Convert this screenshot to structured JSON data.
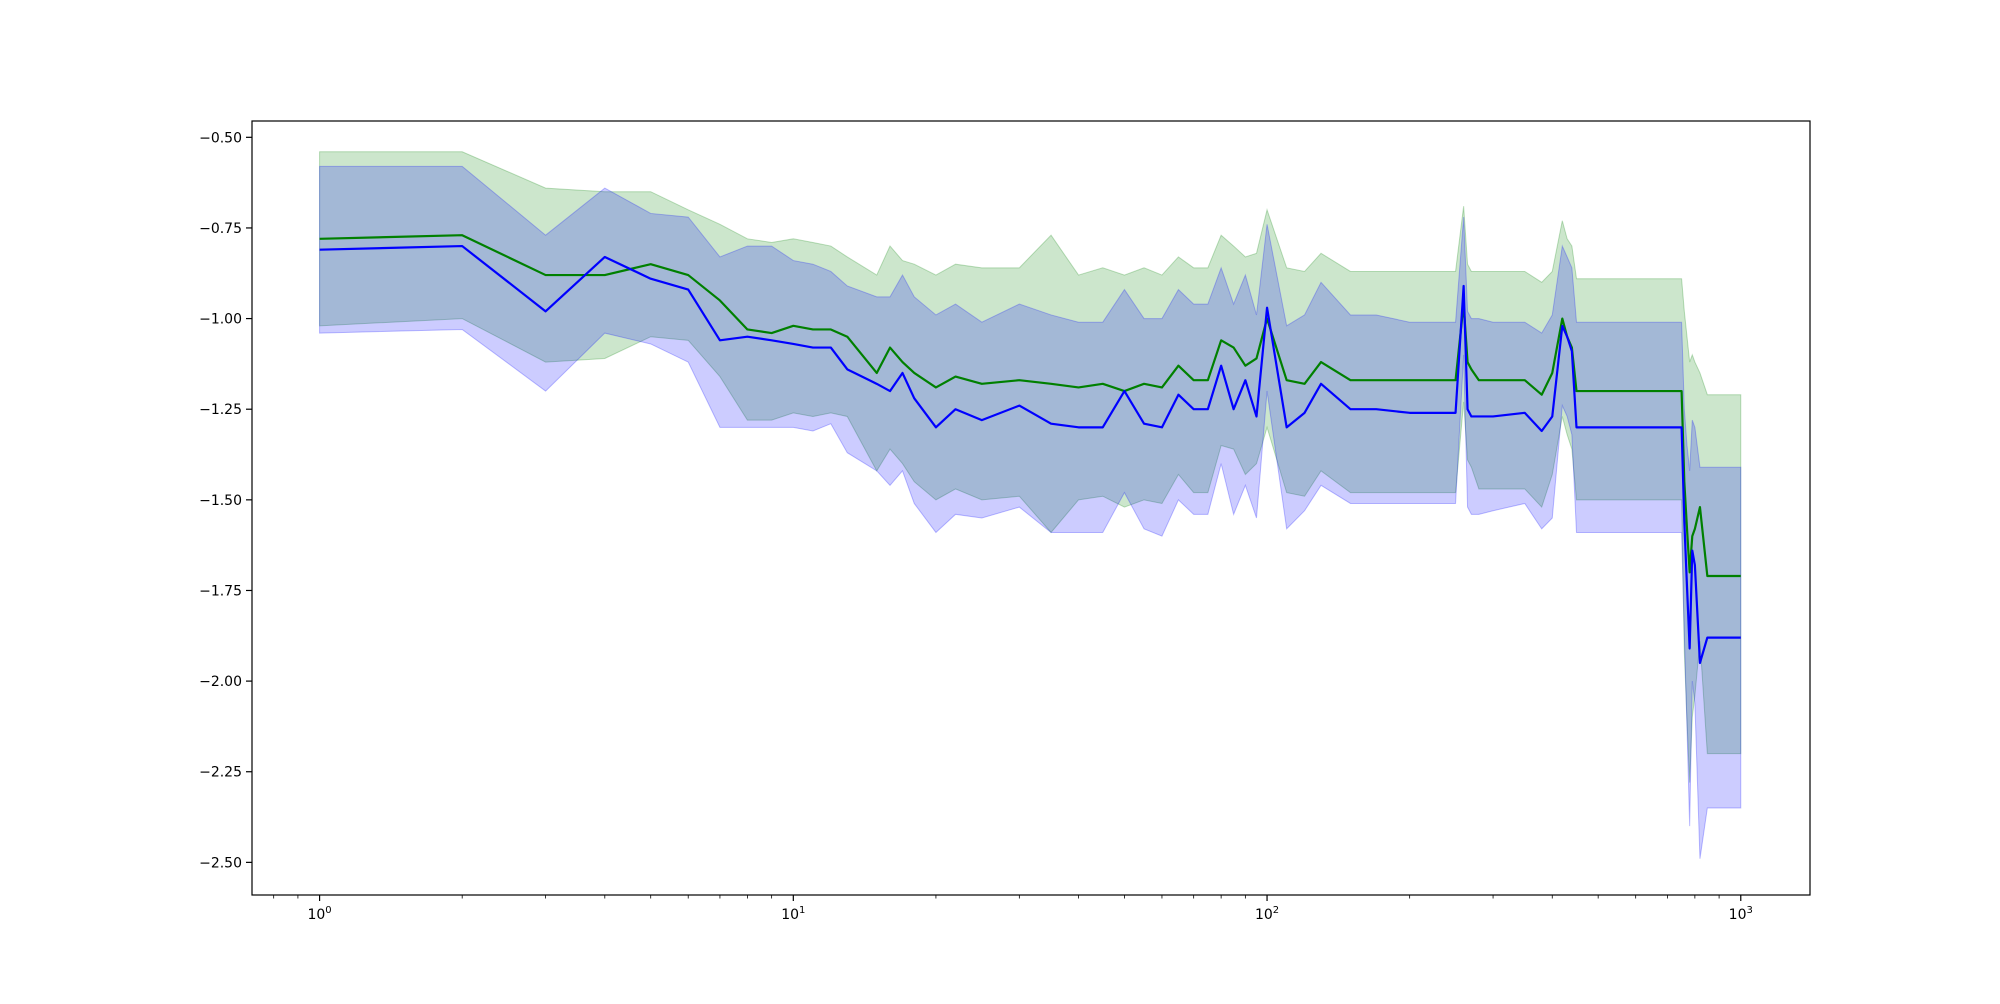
{
  "chart_data": {
    "type": "line",
    "title": "",
    "xlabel": "",
    "ylabel": "",
    "xscale": "log",
    "xlim": [
      0.72,
      1400
    ],
    "ylim": [
      -2.59,
      -0.455
    ],
    "grid": false,
    "legend": "none",
    "x_ticks": [
      {
        "value": 1,
        "base": "10",
        "exp": "0"
      },
      {
        "value": 10,
        "base": "10",
        "exp": "1"
      },
      {
        "value": 100,
        "base": "10",
        "exp": "2"
      },
      {
        "value": 1000,
        "base": "10",
        "exp": "3"
      }
    ],
    "y_ticks": [
      {
        "value": -0.5,
        "label": "−0.50"
      },
      {
        "value": -0.75,
        "label": "−0.75"
      },
      {
        "value": -1.0,
        "label": "−1.00"
      },
      {
        "value": -1.25,
        "label": "−1.25"
      },
      {
        "value": -1.5,
        "label": "−1.50"
      },
      {
        "value": -1.75,
        "label": "−1.75"
      },
      {
        "value": -2.0,
        "label": "−2.00"
      },
      {
        "value": -2.25,
        "label": "−2.25"
      },
      {
        "value": -2.5,
        "label": "−2.50"
      }
    ],
    "series": [
      {
        "color": "#008000",
        "band_color": "#008000",
        "band_opacity": 0.2,
        "x": [
          1,
          2,
          3,
          4,
          5,
          6,
          7,
          8,
          9,
          10,
          11,
          12,
          13,
          15,
          16,
          17,
          18,
          20,
          22,
          25,
          30,
          35,
          40,
          45,
          50,
          55,
          60,
          65,
          70,
          75,
          80,
          85,
          90,
          95,
          100,
          110,
          120,
          130,
          150,
          170,
          200,
          250,
          260,
          265,
          270,
          280,
          300,
          350,
          380,
          400,
          420,
          430,
          440,
          450,
          500,
          600,
          700,
          750,
          760,
          770,
          780,
          790,
          800,
          820,
          850,
          1000
        ],
        "y": [
          -0.78,
          -0.77,
          -0.88,
          -0.88,
          -0.85,
          -0.88,
          -0.95,
          -1.03,
          -1.04,
          -1.02,
          -1.03,
          -1.03,
          -1.05,
          -1.15,
          -1.08,
          -1.12,
          -1.15,
          -1.19,
          -1.16,
          -1.18,
          -1.17,
          -1.18,
          -1.19,
          -1.18,
          -1.2,
          -1.18,
          -1.19,
          -1.13,
          -1.17,
          -1.17,
          -1.06,
          -1.08,
          -1.13,
          -1.11,
          -1.0,
          -1.17,
          -1.18,
          -1.12,
          -1.17,
          -1.17,
          -1.17,
          -1.17,
          -0.96,
          -1.12,
          -1.14,
          -1.17,
          -1.17,
          -1.17,
          -1.21,
          -1.15,
          -1.0,
          -1.05,
          -1.08,
          -1.2,
          -1.2,
          -1.2,
          -1.2,
          -1.2,
          -1.45,
          -1.58,
          -1.7,
          -1.6,
          -1.58,
          -1.52,
          -1.71,
          -1.71
        ],
        "upper": [
          -0.54,
          -0.54,
          -0.64,
          -0.65,
          -0.65,
          -0.7,
          -0.74,
          -0.78,
          -0.79,
          -0.78,
          -0.79,
          -0.8,
          -0.83,
          -0.88,
          -0.8,
          -0.84,
          -0.85,
          -0.88,
          -0.85,
          -0.86,
          -0.86,
          -0.77,
          -0.88,
          -0.86,
          -0.88,
          -0.86,
          -0.88,
          -0.83,
          -0.86,
          -0.86,
          -0.77,
          -0.8,
          -0.83,
          -0.82,
          -0.7,
          -0.86,
          -0.87,
          -0.82,
          -0.87,
          -0.87,
          -0.87,
          -0.87,
          -0.69,
          -0.85,
          -0.87,
          -0.87,
          -0.87,
          -0.87,
          -0.9,
          -0.87,
          -0.73,
          -0.78,
          -0.8,
          -0.89,
          -0.89,
          -0.89,
          -0.89,
          -0.89,
          -0.98,
          -1.05,
          -1.12,
          -1.1,
          -1.12,
          -1.15,
          -1.21,
          -1.21
        ],
        "lower": [
          -1.02,
          -1.0,
          -1.12,
          -1.11,
          -1.05,
          -1.06,
          -1.16,
          -1.28,
          -1.28,
          -1.26,
          -1.27,
          -1.26,
          -1.27,
          -1.42,
          -1.36,
          -1.4,
          -1.45,
          -1.5,
          -1.47,
          -1.5,
          -1.49,
          -1.59,
          -1.5,
          -1.49,
          -1.52,
          -1.5,
          -1.51,
          -1.43,
          -1.48,
          -1.48,
          -1.35,
          -1.36,
          -1.43,
          -1.4,
          -1.3,
          -1.48,
          -1.49,
          -1.42,
          -1.48,
          -1.48,
          -1.48,
          -1.48,
          -1.23,
          -1.39,
          -1.41,
          -1.47,
          -1.47,
          -1.47,
          -1.52,
          -1.43,
          -1.27,
          -1.32,
          -1.36,
          -1.5,
          -1.5,
          -1.5,
          -1.5,
          -1.5,
          -1.92,
          -2.11,
          -2.28,
          -2.1,
          -2.04,
          -1.89,
          -2.2,
          -2.2
        ]
      },
      {
        "color": "#0000ff",
        "band_color": "#0000ff",
        "band_opacity": 0.2,
        "x": [
          1,
          2,
          3,
          4,
          5,
          6,
          7,
          8,
          9,
          10,
          11,
          12,
          13,
          15,
          16,
          17,
          18,
          20,
          22,
          25,
          30,
          35,
          40,
          45,
          50,
          55,
          60,
          65,
          70,
          75,
          80,
          85,
          90,
          95,
          100,
          110,
          120,
          130,
          150,
          170,
          200,
          250,
          260,
          265,
          270,
          280,
          300,
          350,
          380,
          400,
          420,
          430,
          440,
          450,
          500,
          600,
          700,
          750,
          760,
          770,
          780,
          790,
          800,
          820,
          850,
          1000
        ],
        "y": [
          -0.81,
          -0.8,
          -0.98,
          -0.83,
          -0.89,
          -0.92,
          -1.06,
          -1.05,
          -1.06,
          -1.07,
          -1.08,
          -1.08,
          -1.14,
          -1.18,
          -1.2,
          -1.15,
          -1.22,
          -1.3,
          -1.25,
          -1.28,
          -1.24,
          -1.29,
          -1.3,
          -1.3,
          -1.2,
          -1.29,
          -1.3,
          -1.21,
          -1.25,
          -1.25,
          -1.13,
          -1.25,
          -1.17,
          -1.27,
          -0.97,
          -1.3,
          -1.26,
          -1.18,
          -1.25,
          -1.25,
          -1.26,
          -1.26,
          -0.91,
          -1.25,
          -1.27,
          -1.27,
          -1.27,
          -1.26,
          -1.31,
          -1.27,
          -1.02,
          -1.05,
          -1.09,
          -1.3,
          -1.3,
          -1.3,
          -1.3,
          -1.3,
          -1.56,
          -1.74,
          -1.91,
          -1.64,
          -1.68,
          -1.95,
          -1.88,
          -1.88
        ],
        "upper": [
          -0.58,
          -0.58,
          -0.77,
          -0.64,
          -0.71,
          -0.72,
          -0.83,
          -0.8,
          -0.8,
          -0.84,
          -0.85,
          -0.87,
          -0.91,
          -0.94,
          -0.94,
          -0.88,
          -0.94,
          -0.99,
          -0.96,
          -1.01,
          -0.96,
          -0.99,
          -1.01,
          -1.01,
          -0.92,
          -1.0,
          -1.0,
          -0.92,
          -0.96,
          -0.96,
          -0.86,
          -0.96,
          -0.88,
          -0.99,
          -0.74,
          -1.02,
          -0.99,
          -0.9,
          -0.99,
          -0.99,
          -1.01,
          -1.01,
          -0.72,
          -0.98,
          -1.0,
          -1.0,
          -1.01,
          -1.01,
          -1.04,
          -0.99,
          -0.8,
          -0.83,
          -0.86,
          -1.01,
          -1.01,
          -1.01,
          -1.01,
          -1.01,
          -1.25,
          -1.35,
          -1.42,
          -1.28,
          -1.3,
          -1.41,
          -1.41,
          -1.41
        ],
        "lower": [
          -1.04,
          -1.03,
          -1.2,
          -1.04,
          -1.07,
          -1.12,
          -1.3,
          -1.3,
          -1.3,
          -1.3,
          -1.31,
          -1.29,
          -1.37,
          -1.42,
          -1.46,
          -1.42,
          -1.51,
          -1.59,
          -1.54,
          -1.55,
          -1.52,
          -1.59,
          -1.59,
          -1.59,
          -1.48,
          -1.58,
          -1.6,
          -1.5,
          -1.54,
          -1.54,
          -1.4,
          -1.54,
          -1.46,
          -1.55,
          -1.2,
          -1.58,
          -1.53,
          -1.46,
          -1.51,
          -1.51,
          -1.51,
          -1.51,
          -1.1,
          -1.52,
          -1.54,
          -1.54,
          -1.53,
          -1.51,
          -1.58,
          -1.55,
          -1.24,
          -1.27,
          -1.32,
          -1.59,
          -1.59,
          -1.59,
          -1.59,
          -1.59,
          -1.87,
          -2.13,
          -2.4,
          -2.0,
          -2.06,
          -2.49,
          -2.35,
          -2.35
        ]
      }
    ]
  }
}
